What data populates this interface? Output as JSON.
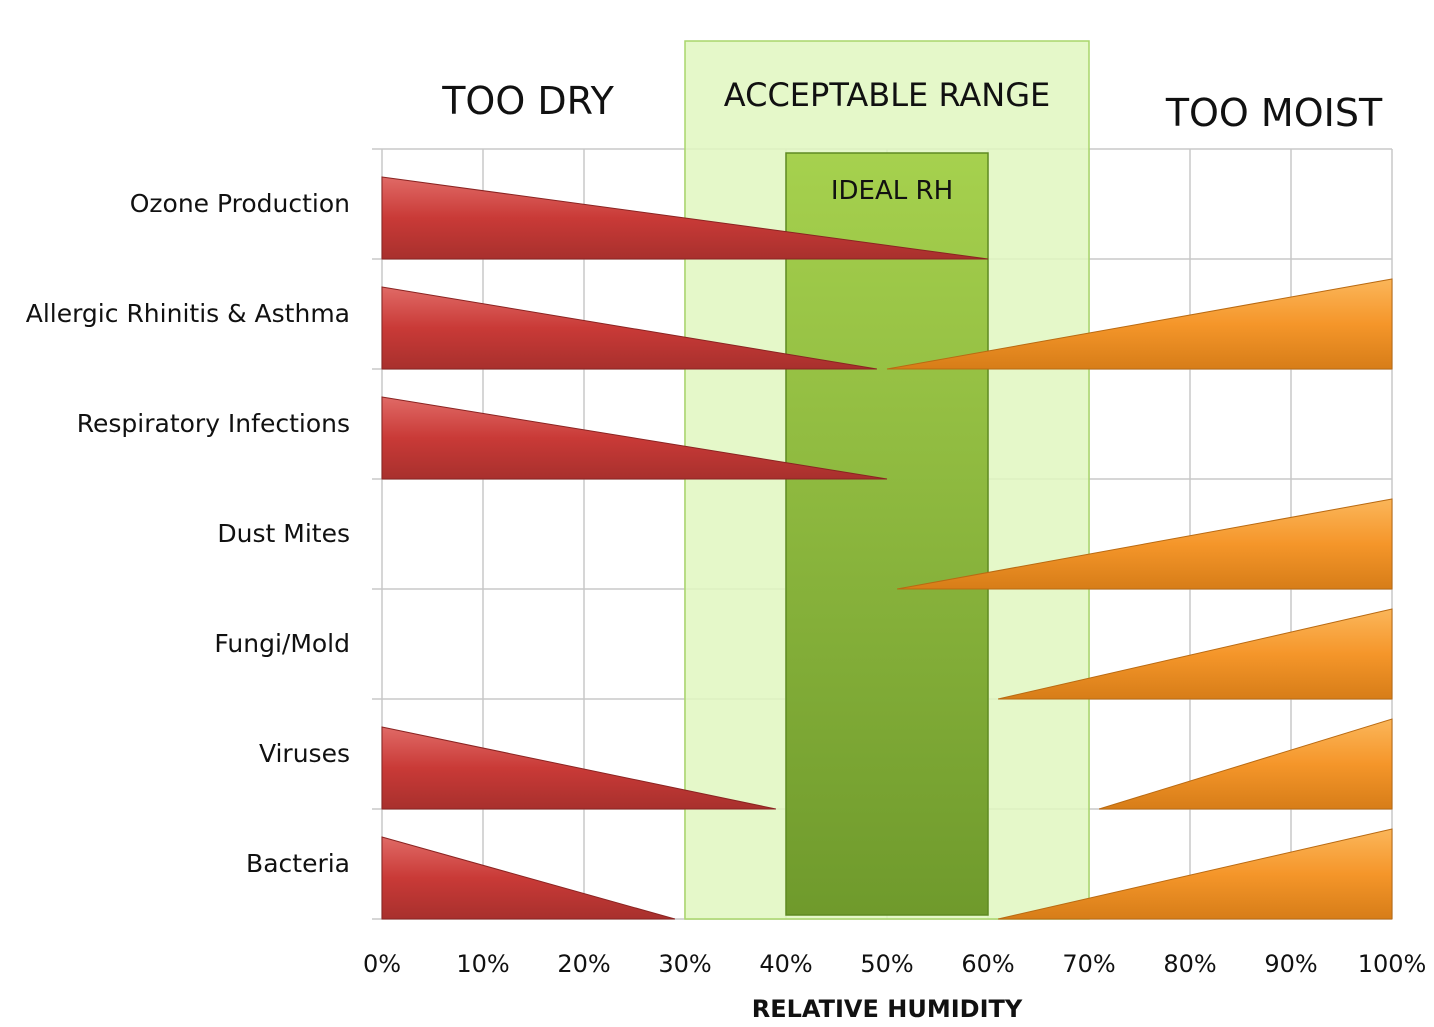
{
  "chart_data": {
    "type": "bar",
    "xlabel": "RELATIVE HUMIDITY",
    "x_range": [
      0,
      100
    ],
    "x_ticks": [
      "0%",
      "10%",
      "20%",
      "30%",
      "40%",
      "50%",
      "60%",
      "70%",
      "80%",
      "90%",
      "100%"
    ],
    "zones": {
      "too_dry": "TOO DRY",
      "acceptable": {
        "label": "ACCEPTABLE RANGE",
        "from": 30,
        "to": 70,
        "color": "#e0f7c0"
      },
      "ideal": {
        "label": "IDEAL RH",
        "from": 40,
        "to": 60,
        "color": "#8cbc3a"
      },
      "too_moist": "TOO MOIST"
    },
    "colors": {
      "dry_wedge": "#cc3b38",
      "moist_wedge": "#f5962a"
    },
    "categories": [
      {
        "name": "Ozone Production",
        "dry": [
          0,
          60
        ],
        "moist": null
      },
      {
        "name": "Allergic Rhinitis & Asthma",
        "dry": [
          0,
          49
        ],
        "moist": [
          50,
          100
        ]
      },
      {
        "name": "Respiratory Infections",
        "dry": [
          0,
          50
        ],
        "moist": null
      },
      {
        "name": "Dust Mites",
        "dry": null,
        "moist": [
          51,
          100
        ]
      },
      {
        "name": "Fungi/Mold",
        "dry": null,
        "moist": [
          61,
          100
        ]
      },
      {
        "name": "Viruses",
        "dry": [
          0,
          39
        ],
        "moist": [
          71,
          100
        ]
      },
      {
        "name": "Bacteria",
        "dry": [
          0,
          29
        ],
        "moist": [
          61,
          100
        ]
      }
    ]
  }
}
